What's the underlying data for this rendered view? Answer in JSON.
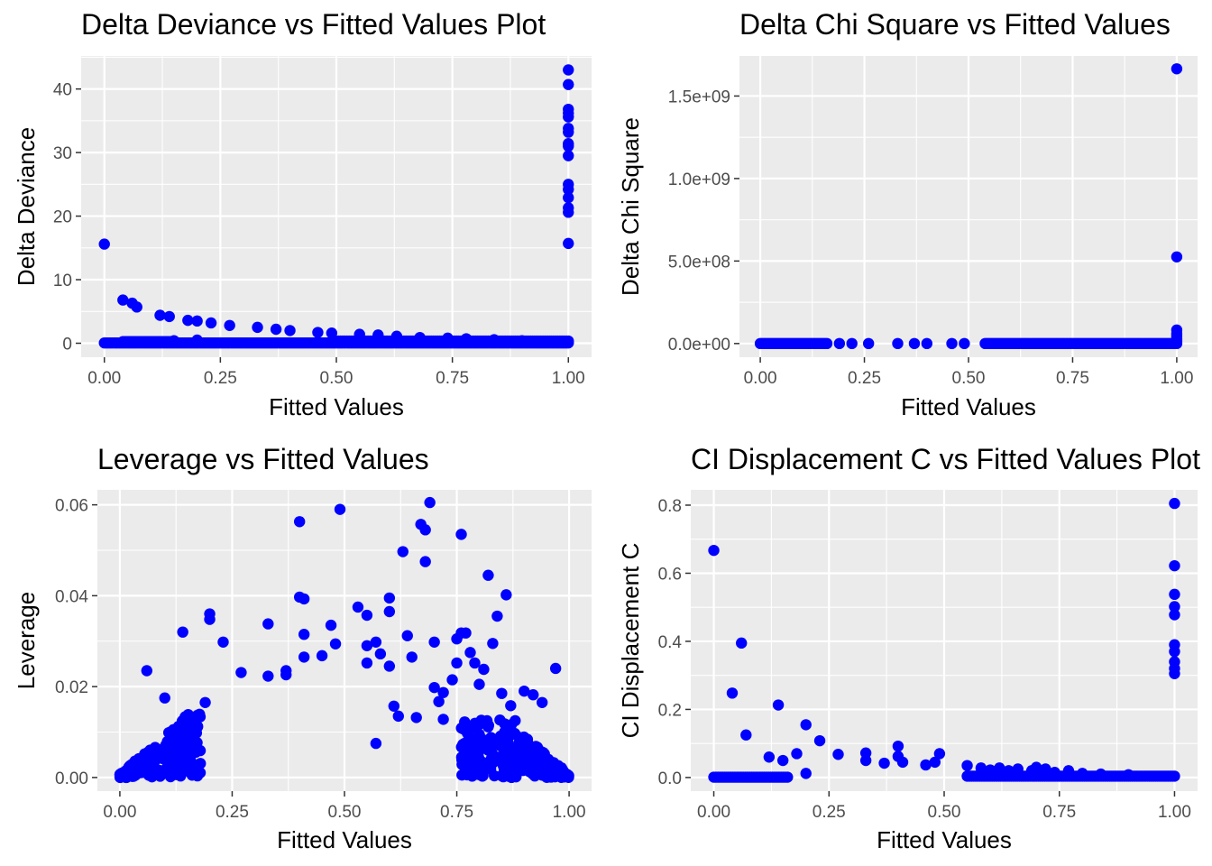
{
  "colors": {
    "panel_bg": "#EBEBEB",
    "grid": "#FFFFFF",
    "point": "#0000FF",
    "tick_text": "#4D4D4D"
  },
  "chart_data": [
    {
      "type": "scatter",
      "title": "Delta Deviance vs Fitted Values Plot",
      "xlabel": "Fitted Values",
      "ylabel": "Delta Deviance",
      "xlim": [
        -0.05,
        1.05
      ],
      "ylim": [
        -2.2,
        45.2
      ],
      "grid": true,
      "legend": "none",
      "xticks": [
        {
          "v": 0,
          "label": "0.00"
        },
        {
          "v": 0.25,
          "label": "0.25"
        },
        {
          "v": 0.5,
          "label": "0.50"
        },
        {
          "v": 0.75,
          "label": "0.75"
        },
        {
          "v": 1,
          "label": "1.00"
        }
      ],
      "yticks": [
        {
          "v": 0,
          "label": "0"
        },
        {
          "v": 10,
          "label": "10"
        },
        {
          "v": 20,
          "label": "20"
        },
        {
          "v": 30,
          "label": "30"
        },
        {
          "v": 40,
          "label": "40"
        }
      ],
      "points": [
        [
          0,
          15.6
        ],
        [
          0.04,
          6.8
        ],
        [
          0.06,
          6.3
        ],
        [
          0.07,
          5.7
        ],
        [
          0.12,
          4.4
        ],
        [
          0.14,
          4.2
        ],
        [
          0.18,
          3.6
        ],
        [
          0.2,
          3.5
        ],
        [
          0.23,
          3.2
        ],
        [
          0.27,
          2.8
        ],
        [
          0.33,
          2.5
        ],
        [
          0.37,
          2.2
        ],
        [
          0.4,
          2.0
        ],
        [
          0.46,
          1.7
        ],
        [
          0.49,
          1.6
        ],
        [
          0.55,
          1.4
        ],
        [
          0.59,
          1.3
        ],
        [
          0.63,
          1.1
        ],
        [
          0.68,
          0.9
        ],
        [
          0.74,
          0.8
        ],
        [
          0.78,
          0.7
        ],
        [
          0.84,
          0.55
        ],
        [
          0.9,
          0.4
        ],
        [
          0.96,
          0.25
        ],
        [
          1,
          43.0
        ],
        [
          1,
          40.7
        ],
        [
          1,
          36.8
        ],
        [
          1,
          36.2
        ],
        [
          1,
          35.6
        ],
        [
          1,
          33.8
        ],
        [
          1,
          33.2
        ],
        [
          1,
          31.4
        ],
        [
          1,
          31.0
        ],
        [
          1,
          29.5
        ],
        [
          1,
          25.0
        ],
        [
          1,
          24.2
        ],
        [
          1,
          22.9
        ],
        [
          1,
          21.3
        ],
        [
          1,
          20.6
        ],
        [
          1,
          15.7
        ],
        [
          0.2,
          0.5
        ],
        [
          0.15,
          0.4
        ]
      ],
      "baseline": [
        {
          "y": 0.05,
          "x": [
            0,
            1
          ]
        },
        {
          "y": 0.25,
          "x": [
            0.04,
            0.15
          ]
        },
        {
          "y": 0.35,
          "x": [
            0.5,
            1
          ]
        }
      ]
    },
    {
      "type": "scatter",
      "title": "Delta Chi Square vs Fitted Values",
      "xlabel": "Fitted Values",
      "ylabel": "Delta Chi Square",
      "xlim": [
        -0.05,
        1.05
      ],
      "ylim": [
        -83000000,
        1743000000
      ],
      "grid": true,
      "legend": "none",
      "xticks": [
        {
          "v": 0,
          "label": "0.00"
        },
        {
          "v": 0.25,
          "label": "0.25"
        },
        {
          "v": 0.5,
          "label": "0.50"
        },
        {
          "v": 0.75,
          "label": "0.75"
        },
        {
          "v": 1,
          "label": "1.00"
        }
      ],
      "yticks": [
        {
          "v": 0,
          "label": "0.0e+00"
        },
        {
          "v": 500000000,
          "label": "5.0e+08"
        },
        {
          "v": 1000000000,
          "label": "1.0e+09"
        },
        {
          "v": 1500000000,
          "label": "1.5e+09"
        }
      ],
      "points": [
        [
          1,
          1665000000
        ],
        [
          1,
          525000000
        ],
        [
          1,
          82000000
        ],
        [
          1,
          60000000
        ],
        [
          1,
          45000000
        ],
        [
          1,
          30000000
        ],
        [
          1,
          20000000
        ],
        [
          1,
          10000000
        ],
        [
          0.19,
          0
        ],
        [
          0.22,
          0
        ],
        [
          0.26,
          0
        ],
        [
          0.33,
          0
        ],
        [
          0.37,
          0
        ],
        [
          0.4,
          0
        ],
        [
          0.46,
          0
        ],
        [
          0.49,
          0
        ]
      ],
      "baseline": [
        {
          "y": 0,
          "x": [
            0,
            0.16
          ]
        },
        {
          "y": 0,
          "x": [
            0.54,
            1
          ]
        }
      ]
    },
    {
      "type": "scatter",
      "title": "Leverage vs Fitted Values",
      "xlabel": "Fitted Values",
      "ylabel": "Leverage",
      "xlim": [
        -0.05,
        1.05
      ],
      "ylim": [
        -0.003,
        0.0633
      ],
      "grid": true,
      "legend": "none",
      "xticks": [
        {
          "v": 0,
          "label": "0.00"
        },
        {
          "v": 0.25,
          "label": "0.25"
        },
        {
          "v": 0.5,
          "label": "0.50"
        },
        {
          "v": 0.75,
          "label": "0.75"
        },
        {
          "v": 1,
          "label": "1.00"
        }
      ],
      "yticks": [
        {
          "v": 0,
          "label": "0.00"
        },
        {
          "v": 0.02,
          "label": "0.02"
        },
        {
          "v": 0.04,
          "label": "0.04"
        },
        {
          "v": 0.06,
          "label": "0.06"
        }
      ],
      "points": [
        [
          0.06,
          0.0235
        ],
        [
          0.1,
          0.0175
        ],
        [
          0.14,
          0.032
        ],
        [
          0.19,
          0.0165
        ],
        [
          0.2,
          0.036
        ],
        [
          0.2,
          0.0348
        ],
        [
          0.23,
          0.0298
        ],
        [
          0.27,
          0.0231
        ],
        [
          0.33,
          0.0338
        ],
        [
          0.33,
          0.0223
        ],
        [
          0.37,
          0.0235
        ],
        [
          0.37,
          0.0226
        ],
        [
          0.4,
          0.0563
        ],
        [
          0.4,
          0.0397
        ],
        [
          0.41,
          0.0393
        ],
        [
          0.41,
          0.0315
        ],
        [
          0.41,
          0.0265
        ],
        [
          0.45,
          0.0268
        ],
        [
          0.47,
          0.0335
        ],
        [
          0.48,
          0.0294
        ],
        [
          0.49,
          0.059
        ],
        [
          0.53,
          0.0375
        ],
        [
          0.55,
          0.0357
        ],
        [
          0.55,
          0.029
        ],
        [
          0.55,
          0.0252
        ],
        [
          0.57,
          0.0298
        ],
        [
          0.57,
          0.0075
        ],
        [
          0.58,
          0.0272
        ],
        [
          0.6,
          0.0365
        ],
        [
          0.6,
          0.0395
        ],
        [
          0.6,
          0.0245
        ],
        [
          0.61,
          0.0157
        ],
        [
          0.62,
          0.0135
        ],
        [
          0.63,
          0.0497
        ],
        [
          0.64,
          0.0312
        ],
        [
          0.65,
          0.0265
        ],
        [
          0.66,
          0.0132
        ],
        [
          0.67,
          0.0557
        ],
        [
          0.68,
          0.0545
        ],
        [
          0.68,
          0.0475
        ],
        [
          0.69,
          0.0605
        ],
        [
          0.7,
          0.0298
        ],
        [
          0.7,
          0.0198
        ],
        [
          0.71,
          0.0167
        ],
        [
          0.72,
          0.0187
        ],
        [
          0.72,
          0.0128
        ],
        [
          0.74,
          0.0215
        ],
        [
          0.75,
          0.0305
        ],
        [
          0.75,
          0.0252
        ],
        [
          0.76,
          0.0535
        ],
        [
          0.76,
          0.0318
        ],
        [
          0.77,
          0.0318
        ],
        [
          0.78,
          0.0275
        ],
        [
          0.79,
          0.0252
        ],
        [
          0.8,
          0.0205
        ],
        [
          0.81,
          0.0238
        ],
        [
          0.82,
          0.0445
        ],
        [
          0.83,
          0.0295
        ],
        [
          0.84,
          0.0355
        ],
        [
          0.85,
          0.0185
        ],
        [
          0.86,
          0.0402
        ],
        [
          0.87,
          0.0158
        ],
        [
          0.88,
          0.0125
        ],
        [
          0.9,
          0.019
        ],
        [
          0.92,
          0.0182
        ],
        [
          0.94,
          0.0165
        ],
        [
          0.97,
          0.024
        ],
        [
          0.77,
          0.007
        ],
        [
          0.8,
          0.0095
        ],
        [
          0.82,
          0.006
        ],
        [
          0.85,
          0.008
        ]
      ],
      "clusters": [
        {
          "x0": 0,
          "x1": 0.18,
          "y0": 0.0,
          "y1": 0.014,
          "n": 190
        },
        {
          "x0": 0.76,
          "x1": 1.0,
          "y0": 0.0,
          "y1": 0.013,
          "n": 260
        }
      ]
    },
    {
      "type": "scatter",
      "title": "CI Displacement C vs Fitted Values Plot",
      "xlabel": "Fitted Values",
      "ylabel": "CI Displacement C",
      "xlim": [
        -0.05,
        1.05
      ],
      "ylim": [
        -0.04,
        0.845
      ],
      "grid": true,
      "legend": "none",
      "xticks": [
        {
          "v": 0,
          "label": "0.00"
        },
        {
          "v": 0.25,
          "label": "0.25"
        },
        {
          "v": 0.5,
          "label": "0.50"
        },
        {
          "v": 0.75,
          "label": "0.75"
        },
        {
          "v": 1,
          "label": "1.00"
        }
      ],
      "yticks": [
        {
          "v": 0,
          "label": "0.0"
        },
        {
          "v": 0.2,
          "label": "0.2"
        },
        {
          "v": 0.4,
          "label": "0.4"
        },
        {
          "v": 0.6,
          "label": "0.6"
        },
        {
          "v": 0.8,
          "label": "0.8"
        }
      ],
      "points": [
        [
          0,
          0.667
        ],
        [
          0.04,
          0.248
        ],
        [
          0.06,
          0.395
        ],
        [
          0.07,
          0.125
        ],
        [
          0.12,
          0.06
        ],
        [
          0.14,
          0.213
        ],
        [
          0.15,
          0.05
        ],
        [
          0.18,
          0.07
        ],
        [
          0.2,
          0.155
        ],
        [
          0.2,
          0.012
        ],
        [
          0.23,
          0.108
        ],
        [
          0.27,
          0.068
        ],
        [
          0.33,
          0.072
        ],
        [
          0.33,
          0.05
        ],
        [
          0.37,
          0.042
        ],
        [
          0.4,
          0.092
        ],
        [
          0.4,
          0.062
        ],
        [
          0.41,
          0.045
        ],
        [
          0.46,
          0.037
        ],
        [
          0.48,
          0.045
        ],
        [
          0.49,
          0.07
        ],
        [
          0.55,
          0.035
        ],
        [
          0.58,
          0.028
        ],
        [
          0.6,
          0.022
        ],
        [
          0.62,
          0.028
        ],
        [
          0.64,
          0.02
        ],
        [
          0.66,
          0.025
        ],
        [
          0.69,
          0.02
        ],
        [
          0.7,
          0.03
        ],
        [
          0.72,
          0.025
        ],
        [
          0.74,
          0.015
        ],
        [
          0.77,
          0.02
        ],
        [
          0.8,
          0.012
        ],
        [
          0.84,
          0.01
        ],
        [
          0.9,
          0.008
        ],
        [
          1,
          0.805
        ],
        [
          1,
          0.622
        ],
        [
          1,
          0.538
        ],
        [
          1,
          0.502
        ],
        [
          1,
          0.478
        ],
        [
          1,
          0.39
        ],
        [
          1,
          0.37
        ],
        [
          1,
          0.34
        ],
        [
          1,
          0.32
        ],
        [
          1,
          0.305
        ]
      ],
      "baseline": [
        {
          "y": 0.001,
          "x": [
            0,
            0.16
          ]
        },
        {
          "y": 0.004,
          "x": [
            0.55,
            1
          ]
        }
      ]
    }
  ]
}
